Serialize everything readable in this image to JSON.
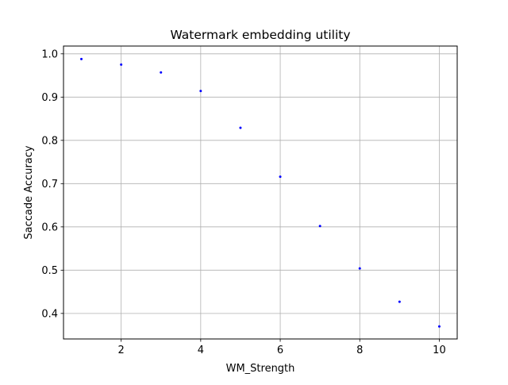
{
  "chart_data": {
    "type": "scatter",
    "title": "Watermark embedding utility",
    "xlabel": "WM_Strength",
    "ylabel": "Saccade Accuracy",
    "xlim": [
      0.55,
      10.45
    ],
    "ylim": [
      0.341,
      1.018
    ],
    "x_ticks": [
      2,
      4,
      6,
      8,
      10
    ],
    "x_tick_labels": [
      "2",
      "4",
      "6",
      "8",
      "10"
    ],
    "y_ticks": [
      0.4,
      0.5,
      0.6,
      0.7,
      0.8,
      0.9,
      1.0
    ],
    "y_tick_labels": [
      "0.4",
      "0.5",
      "0.6",
      "0.7",
      "0.8",
      "0.9",
      "1.0"
    ],
    "grid": true,
    "marker_color": "#0000ff",
    "series": [
      {
        "x": [
          1,
          2,
          3,
          4,
          5,
          6,
          7,
          8,
          9,
          10
        ],
        "y": [
          0.988,
          0.975,
          0.957,
          0.914,
          0.829,
          0.716,
          0.602,
          0.504,
          0.427,
          0.37
        ]
      }
    ]
  }
}
